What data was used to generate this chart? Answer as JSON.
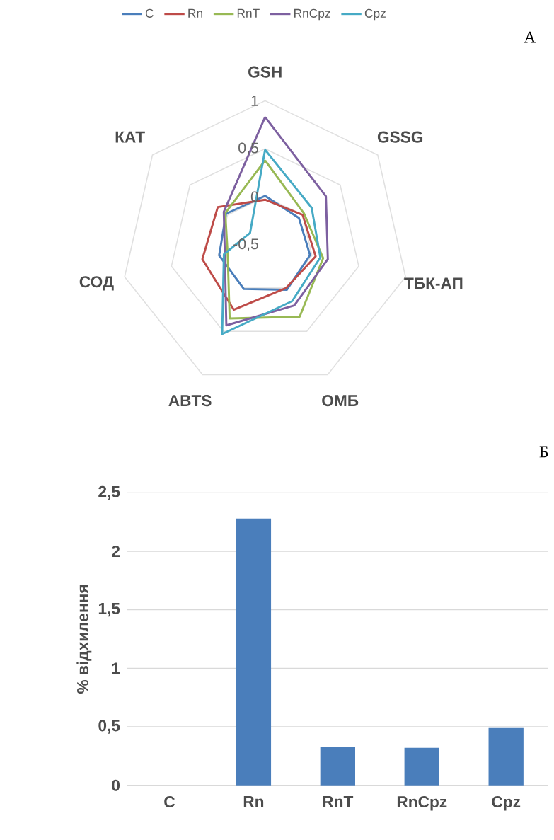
{
  "chart_data": [
    {
      "type": "radar",
      "categories": [
        "GSH",
        "GSSG",
        "ТБК-АП",
        "ОМБ",
        "ABTS",
        "СОД",
        "КАТ"
      ],
      "series": [
        {
          "name": "C",
          "color": "#4a7ebb",
          "values": [
            0.01,
            -0.05,
            -0.02,
            0.02,
            0.01,
            -0.01,
            0.02
          ]
        },
        {
          "name": "Rn",
          "color": "#be4b48",
          "values": [
            -0.03,
            0.0,
            0.04,
            0.0,
            0.25,
            0.17,
            0.13
          ]
        },
        {
          "name": "RnT",
          "color": "#98b954",
          "values": [
            0.38,
            0.02,
            0.12,
            0.33,
            0.35,
            -0.1,
            0.03
          ]
        },
        {
          "name": "RnCpz",
          "color": "#7d60a0",
          "values": [
            0.83,
            0.31,
            0.17,
            0.2,
            0.43,
            -0.07,
            0.05
          ]
        },
        {
          "name": "Cpz",
          "color": "#46aac5",
          "values": [
            0.49,
            0.12,
            0.09,
            0.15,
            0.53,
            -0.06,
            -0.3
          ]
        }
      ],
      "ylim": [
        -0.5,
        1
      ],
      "yticks": [
        {
          "value": -0.5,
          "label": "-0,5"
        },
        0,
        {
          "value": 0.5,
          "label": "0,5"
        },
        1
      ],
      "grid": true,
      "legend": "top",
      "annotations": [
        "A"
      ]
    },
    {
      "type": "bar",
      "categories": [
        "C",
        "Rn",
        "RnT",
        "RnCpz",
        "Cpz"
      ],
      "values": [
        0,
        2.28,
        0.33,
        0.32,
        0.49
      ],
      "color": "#4a7ebb",
      "ylabel": "% відхилення",
      "ylim": [
        0,
        2.5
      ],
      "yticks": [
        0,
        {
          "value": 0.5,
          "label": "0,5"
        },
        1,
        {
          "value": 1.5,
          "label": "1,5"
        },
        2,
        {
          "value": 2.5,
          "label": "2,5"
        }
      ],
      "grid": "y",
      "annotations": [
        "Б"
      ]
    }
  ]
}
